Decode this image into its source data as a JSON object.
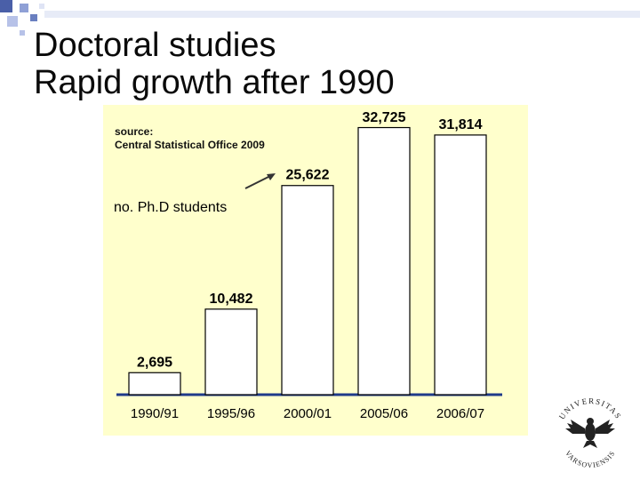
{
  "slide": {
    "title": "Doctoral studies\nRapid growth after 1990",
    "source_label": "source:",
    "source_text": "Central Statistical Office 2009",
    "annotation": "no. Ph.D students"
  },
  "chart_data": {
    "type": "bar",
    "categories": [
      "1990/91",
      "1995/96",
      "2000/01",
      "2005/06",
      "2006/07"
    ],
    "values": [
      2695,
      10482,
      25622,
      32725,
      31814
    ],
    "value_labels": [
      "2,695",
      "10,482",
      "25,622",
      "32,725",
      "31,814"
    ],
    "ylim": [
      0,
      33000
    ],
    "grid": false,
    "legend": "none",
    "colors": {
      "bar_fill": "#ffffff",
      "bar_stroke": "#000000",
      "panel": "#ffffcc",
      "baseline": "#1f3a8a"
    }
  },
  "logo": {
    "text_top": "UNIVERSITAS",
    "text_bottom": "VARSOVIENSIS"
  }
}
